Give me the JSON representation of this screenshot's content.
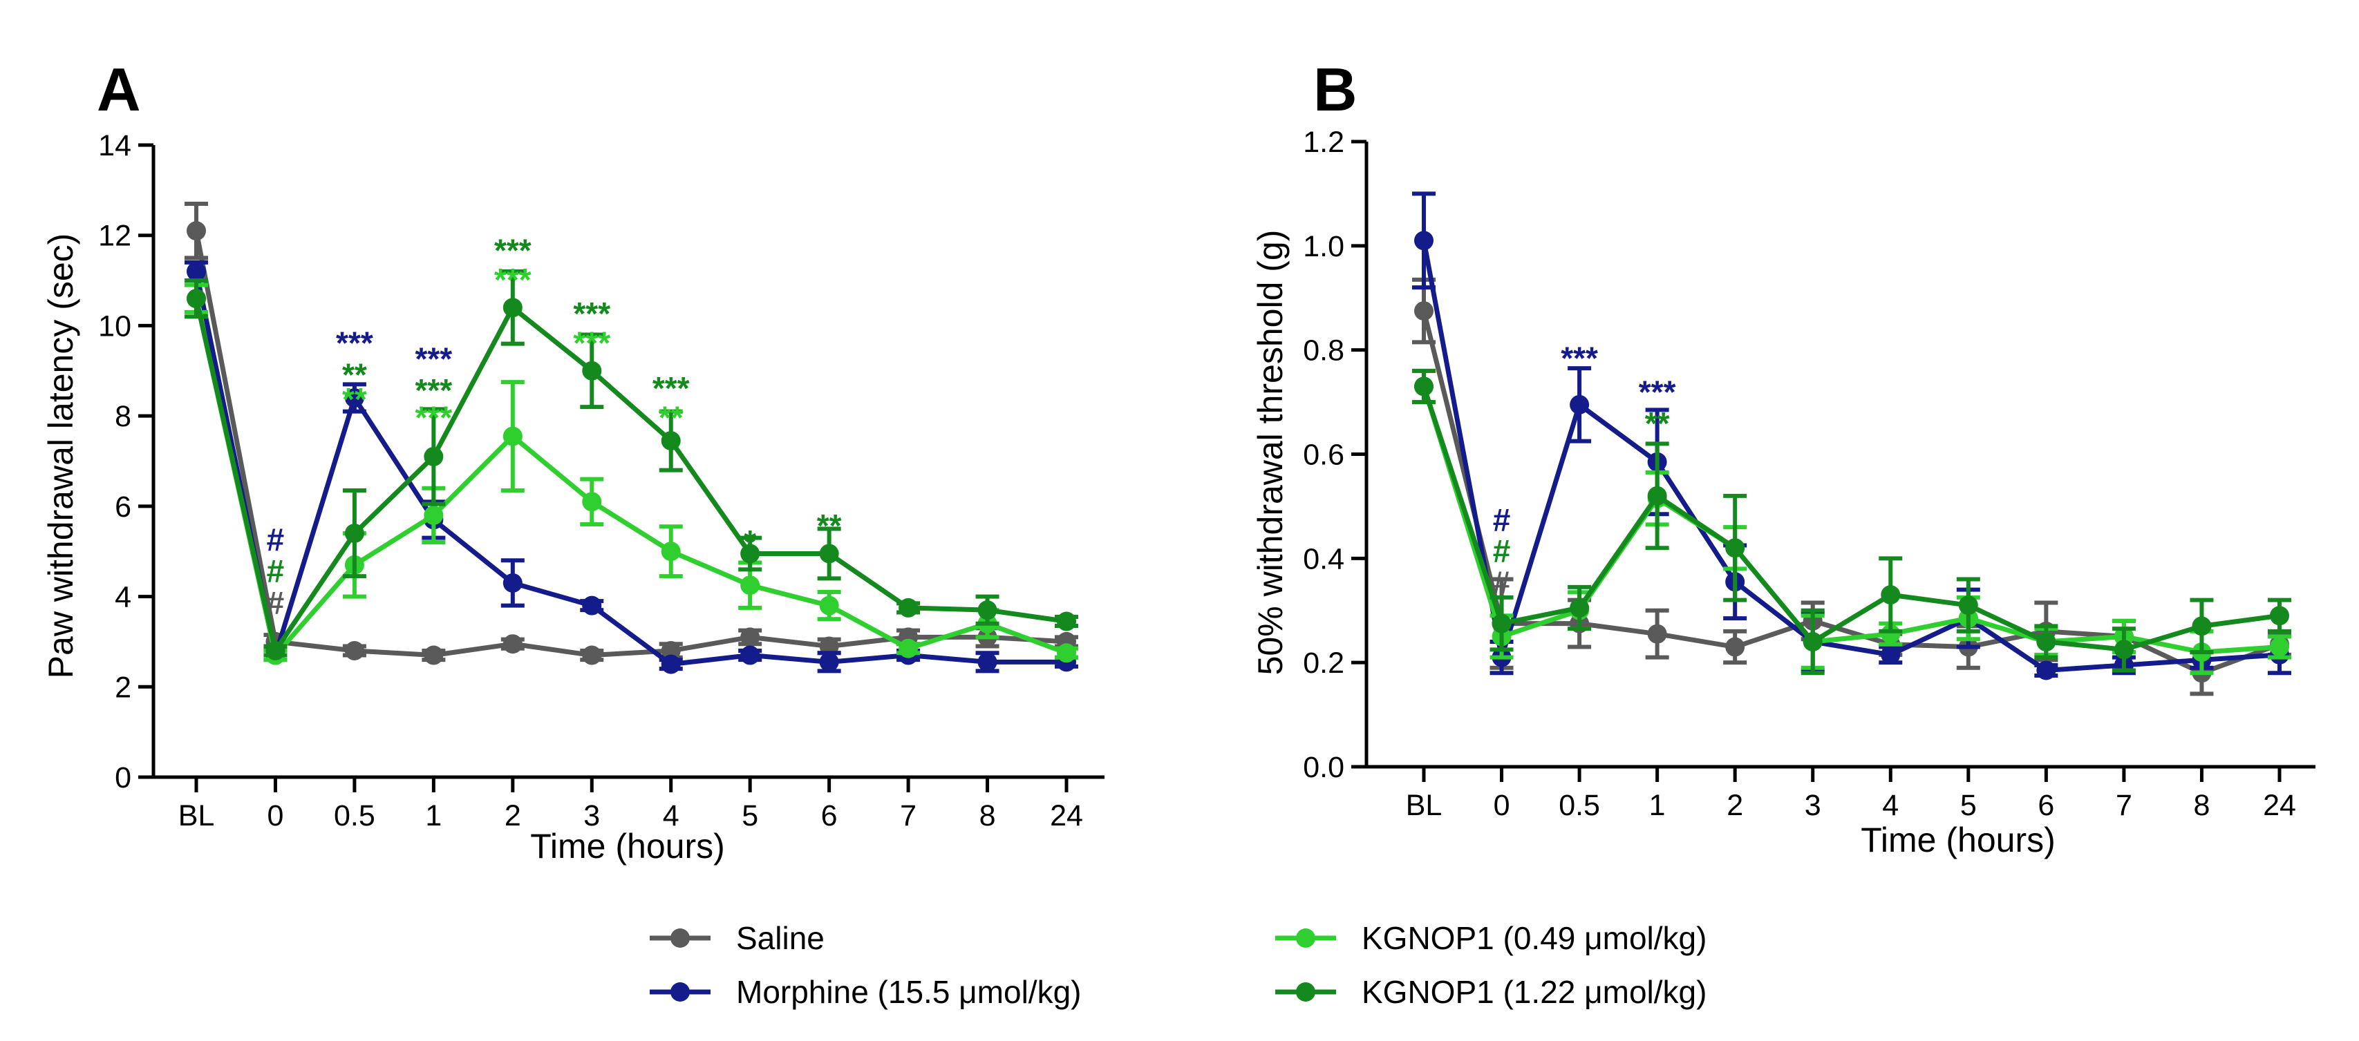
{
  "chart_data": [
    {
      "type": "line",
      "panel": "A",
      "ylabel": "Paw withdrawal latency (sec)",
      "xlabel": "Time (hours)",
      "categories": [
        "BL",
        "0",
        "0.5",
        "1",
        "2",
        "3",
        "4",
        "5",
        "6",
        "7",
        "8",
        "24"
      ],
      "ylim": [
        0,
        14
      ],
      "yticks": [
        "0",
        "2",
        "4",
        "6",
        "8",
        "10",
        "12",
        "14"
      ],
      "series": [
        {
          "name": "Saline",
          "color": "#5a5a5a",
          "values": [
            12.1,
            3.0,
            2.8,
            2.7,
            2.95,
            2.7,
            2.8,
            3.1,
            2.9,
            3.1,
            3.1,
            3.0
          ],
          "errors": [
            0.6,
            0.15,
            0.1,
            0.1,
            0.1,
            0.1,
            0.15,
            0.15,
            0.15,
            0.15,
            0.2,
            0.1
          ]
        },
        {
          "name": "Morphine (15.5 μmol/kg)",
          "color": "#141b8a",
          "values": [
            11.2,
            2.7,
            8.4,
            5.7,
            4.3,
            3.8,
            2.5,
            2.7,
            2.55,
            2.7,
            2.55,
            2.55
          ],
          "errors": [
            0.2,
            0.1,
            0.3,
            0.4,
            0.5,
            0.1,
            0.1,
            0.1,
            0.2,
            0.1,
            0.2,
            0.1
          ]
        },
        {
          "name": "KGNOP1 (0.49 μmol/kg)",
          "color": "#2fcf2f",
          "values": [
            10.6,
            2.7,
            4.7,
            5.8,
            7.55,
            6.1,
            5.0,
            4.25,
            3.8,
            2.85,
            3.4,
            2.75
          ],
          "errors": [
            0.3,
            0.1,
            0.7,
            0.6,
            1.2,
            0.5,
            0.55,
            0.5,
            0.3,
            0.1,
            0.3,
            0.1
          ]
        },
        {
          "name": "KGNOP1 (1.22 μmol/kg)",
          "color": "#148a1e",
          "values": [
            10.6,
            2.8,
            5.4,
            7.1,
            10.4,
            9.0,
            7.45,
            4.95,
            4.95,
            3.75,
            3.7,
            3.45
          ],
          "errors": [
            0.4,
            0.1,
            0.95,
            1.05,
            0.8,
            0.8,
            0.65,
            0.35,
            0.55,
            0.1,
            0.3,
            0.1
          ]
        }
      ],
      "annotations": [
        {
          "x": "0",
          "y": 5.45,
          "text": "#",
          "color": "#141b8a"
        },
        {
          "x": "0",
          "y": 4.75,
          "text": "#",
          "color": "#148a1e"
        },
        {
          "x": "0",
          "y": 4.05,
          "text": "#",
          "color": "#5a5a5a"
        },
        {
          "x": "0.5",
          "y": 9.8,
          "text": "***",
          "color": "#141b8a"
        },
        {
          "x": "0.5",
          "y": 9.1,
          "text": "**",
          "color": "#148a1e"
        },
        {
          "x": "0.5",
          "y": 8.55,
          "text": "**",
          "color": "#2fcf2f"
        },
        {
          "x": "1",
          "y": 9.45,
          "text": "***",
          "color": "#141b8a"
        },
        {
          "x": "1",
          "y": 8.75,
          "text": "***",
          "color": "#148a1e"
        },
        {
          "x": "1",
          "y": 8.15,
          "text": "***",
          "color": "#2fcf2f"
        },
        {
          "x": "2",
          "y": 11.85,
          "text": "***",
          "color": "#148a1e"
        },
        {
          "x": "2",
          "y": 11.2,
          "text": "***",
          "color": "#2fcf2f"
        },
        {
          "x": "3",
          "y": 10.45,
          "text": "***",
          "color": "#148a1e"
        },
        {
          "x": "3",
          "y": 9.8,
          "text": "***",
          "color": "#2fcf2f"
        },
        {
          "x": "4",
          "y": 8.8,
          "text": "***",
          "color": "#148a1e"
        },
        {
          "x": "4",
          "y": 8.15,
          "text": "**",
          "color": "#2fcf2f"
        },
        {
          "x": "5",
          "y": 5.4,
          "text": "*",
          "color": "#148a1e"
        },
        {
          "x": "6",
          "y": 5.75,
          "text": "**",
          "color": "#148a1e"
        }
      ]
    },
    {
      "type": "line",
      "panel": "B",
      "ylabel": "50% withdrawal threshold (g)",
      "xlabel": "Time (hours)",
      "categories": [
        "BL",
        "0",
        "0.5",
        "1",
        "2",
        "3",
        "4",
        "5",
        "6",
        "7",
        "8",
        "24"
      ],
      "ylim": [
        0,
        1.2
      ],
      "yticks": [
        "0.0",
        "0.2",
        "0.4",
        "0.6",
        "0.8",
        "1.0",
        "1.2"
      ],
      "series": [
        {
          "name": "Saline",
          "color": "#5a5a5a",
          "values": [
            0.875,
            0.275,
            0.275,
            0.255,
            0.23,
            0.28,
            0.235,
            0.23,
            0.26,
            0.25,
            0.18,
            0.235
          ],
          "errors": [
            0.06,
            0.085,
            0.045,
            0.045,
            0.03,
            0.035,
            0.02,
            0.04,
            0.055,
            0.03,
            0.04,
            0.02
          ]
        },
        {
          "name": "Morphine (15.5 μmol/kg)",
          "color": "#141b8a",
          "values": [
            1.01,
            0.21,
            0.695,
            0.585,
            0.355,
            0.24,
            0.215,
            0.285,
            0.185,
            0.195,
            0.205,
            0.215
          ],
          "errors": [
            0.09,
            0.03,
            0.07,
            0.1,
            0.07,
            0.055,
            0.015,
            0.055,
            0.01,
            0.015,
            0.015,
            0.035
          ]
        },
        {
          "name": "KGNOP1 (0.49 μmol/kg)",
          "color": "#2fcf2f",
          "values": [
            0.73,
            0.25,
            0.3,
            0.515,
            0.42,
            0.24,
            0.255,
            0.285,
            0.24,
            0.25,
            0.22,
            0.23
          ],
          "errors": [
            0.03,
            0.04,
            0.035,
            0.05,
            0.04,
            0.05,
            0.02,
            0.04,
            0.025,
            0.03,
            0.04,
            0.02
          ]
        },
        {
          "name": "KGNOP1 (1.22 μmol/kg)",
          "color": "#148a1e",
          "values": [
            0.73,
            0.275,
            0.305,
            0.52,
            0.42,
            0.24,
            0.33,
            0.31,
            0.24,
            0.225,
            0.27,
            0.29
          ],
          "errors": [
            0.03,
            0.05,
            0.04,
            0.1,
            0.1,
            0.06,
            0.07,
            0.05,
            0.03,
            0.04,
            0.05,
            0.03
          ]
        }
      ],
      "annotations": [
        {
          "x": "0",
          "y": 0.49,
          "text": "#",
          "color": "#141b8a"
        },
        {
          "x": "0",
          "y": 0.43,
          "text": "#",
          "color": "#148a1e"
        },
        {
          "x": "0",
          "y": 0.37,
          "text": "#",
          "color": "#5a5a5a"
        },
        {
          "x": "0.5",
          "y": 0.8,
          "text": "***",
          "color": "#141b8a"
        },
        {
          "x": "1",
          "y": 0.735,
          "text": "***",
          "color": "#141b8a"
        },
        {
          "x": "1",
          "y": 0.675,
          "text": "**",
          "color": "#148a1e"
        }
      ]
    }
  ],
  "legend": [
    {
      "label": "Saline",
      "color": "#5a5a5a"
    },
    {
      "label": "Morphine (15.5 μmol/kg)",
      "color": "#141b8a"
    },
    {
      "label": "KGNOP1 (0.49 μmol/kg)",
      "color": "#2fcf2f"
    },
    {
      "label": "KGNOP1 (1.22 μmol/kg)",
      "color": "#148a1e"
    }
  ]
}
